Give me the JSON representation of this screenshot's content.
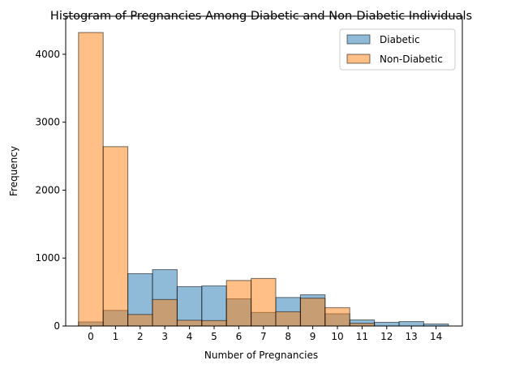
{
  "chart_data": {
    "type": "bar",
    "title": "Histogram of Pregnancies Among Diabetic and Non-Diabetic Individuals",
    "xlabel": "Number of Pregnancies",
    "ylabel": "Frequency",
    "categories": [
      "0",
      "1",
      "2",
      "3",
      "4",
      "5",
      "6",
      "7",
      "8",
      "9",
      "10",
      "11",
      "12",
      "13",
      "14"
    ],
    "ylim": [
      0,
      4560
    ],
    "yticks": [
      0,
      1000,
      2000,
      3000,
      4000
    ],
    "grid": false,
    "legend_position": "top-right",
    "series": [
      {
        "name": "Diabetic",
        "color": "#1f77b4",
        "values": [
          60,
          230,
          770,
          830,
          580,
          590,
          400,
          200,
          420,
          460,
          180,
          90,
          55,
          65,
          30
        ]
      },
      {
        "name": "Non-Diabetic",
        "color": "#ff7f0e",
        "values": [
          4320,
          2640,
          170,
          390,
          85,
          80,
          670,
          700,
          210,
          410,
          270,
          40,
          0,
          0,
          0
        ]
      }
    ]
  }
}
